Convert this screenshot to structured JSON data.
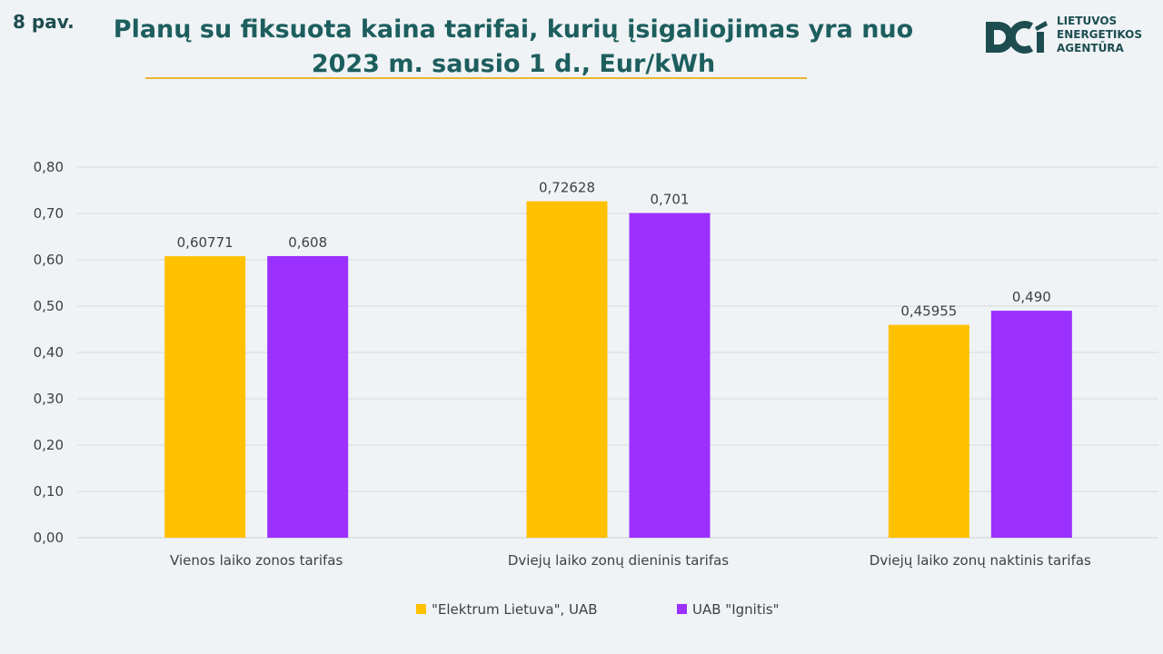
{
  "figure_label": "8 pav.",
  "title_line1": "Planų su fiksuota kaina tarifai, kurių įsigaliojimas yra nuo",
  "title_line2": "2023 m. sausio 1 d., Eur/kWh",
  "logo": {
    "line1": "LIETUVOS",
    "line2": "ENERGETIKOS",
    "line3": "AGENTŪRA"
  },
  "colors": {
    "elektrum": "#ffc000",
    "ignitis": "#9b30ff",
    "brand": "#1d4d50"
  },
  "chart_data": {
    "type": "bar",
    "title": "Planų su fiksuota kaina tarifai, kurių įsigaliojimas yra nuo 2023 m. sausio 1 d., Eur/kWh",
    "categories": [
      "Vienos laiko zonos tarifas",
      "Dviejų laiko zonų dieninis tarifas",
      "Dviejų laiko zonų naktinis tarifas"
    ],
    "series": [
      {
        "name": "\"Elektrum Lietuva\", UAB",
        "values": [
          0.60771,
          0.72628,
          0.45955
        ],
        "labels": [
          "0,60771",
          "0,72628",
          "0,45955"
        ]
      },
      {
        "name": "UAB \"Ignitis\"",
        "values": [
          0.608,
          0.701,
          0.49
        ],
        "labels": [
          "0,608",
          "0,701",
          "0,490"
        ]
      }
    ],
    "yticks": [
      "0,00",
      "0,10",
      "0,20",
      "0,30",
      "0,40",
      "0,50",
      "0,60",
      "0,70",
      "0,80"
    ],
    "ylim": [
      0,
      0.8
    ],
    "grid": true,
    "legend": "bottom"
  }
}
